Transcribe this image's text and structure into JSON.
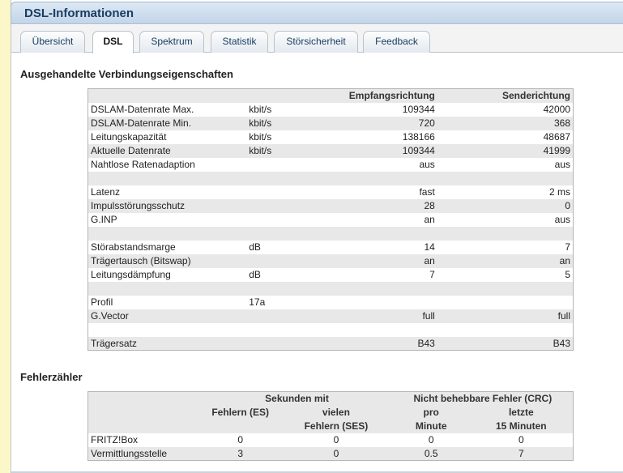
{
  "window": {
    "title": "DSL-Informationen"
  },
  "tabs": [
    {
      "label": "Übersicht",
      "active": false
    },
    {
      "label": "DSL",
      "active": true
    },
    {
      "label": "Spektrum",
      "active": false
    },
    {
      "label": "Statistik",
      "active": false
    },
    {
      "label": "Störsicherheit",
      "active": false
    },
    {
      "label": "Feedback",
      "active": false
    }
  ],
  "connection": {
    "heading": "Ausgehandelte Verbindungseigenschaften",
    "col_receive": "Empfangsrichtung",
    "col_send": "Senderichtung",
    "rows": [
      {
        "label": "DSLAM-Datenrate Max.",
        "unit": "kbit/s",
        "rx": "109344",
        "tx": "42000"
      },
      {
        "label": "DSLAM-Datenrate Min.",
        "unit": "kbit/s",
        "rx": "720",
        "tx": "368"
      },
      {
        "label": "Leitungskapazität",
        "unit": "kbit/s",
        "rx": "138166",
        "tx": "48687"
      },
      {
        "label": "Aktuelle Datenrate",
        "unit": "kbit/s",
        "rx": "109344",
        "tx": "41999"
      },
      {
        "label": "Nahtlose Ratenadaption",
        "unit": "",
        "rx": "aus",
        "tx": "aus"
      },
      {
        "label": "",
        "unit": "",
        "rx": "",
        "tx": ""
      },
      {
        "label": "Latenz",
        "unit": "",
        "rx": "fast",
        "tx": "2 ms"
      },
      {
        "label": "Impulsstörungsschutz",
        "unit": "",
        "rx": "28",
        "tx": "0"
      },
      {
        "label": "G.INP",
        "unit": "",
        "rx": "an",
        "tx": "aus"
      },
      {
        "label": "",
        "unit": "",
        "rx": "",
        "tx": ""
      },
      {
        "label": "Störabstandsmarge",
        "unit": "dB",
        "rx": "14",
        "tx": "7"
      },
      {
        "label": "Trägertausch (Bitswap)",
        "unit": "",
        "rx": "an",
        "tx": "an"
      },
      {
        "label": "Leitungsdämpfung",
        "unit": "dB",
        "rx": "7",
        "tx": "5"
      },
      {
        "label": "",
        "unit": "",
        "rx": "",
        "tx": ""
      },
      {
        "label": "Profil",
        "unit": "17a",
        "rx": "",
        "tx": ""
      },
      {
        "label": "G.Vector",
        "unit": "",
        "rx": "full",
        "tx": "full"
      },
      {
        "label": "",
        "unit": "",
        "rx": "",
        "tx": ""
      },
      {
        "label": "Trägersatz",
        "unit": "",
        "rx": "B43",
        "tx": "B43"
      }
    ]
  },
  "errors": {
    "heading": "Fehlerzähler",
    "group_seconds": "Sekunden mit",
    "group_crc": "Nicht behebbare Fehler (CRC)",
    "col_es": "Fehlern (ES)",
    "col_ses_1": "vielen",
    "col_ses_2": "Fehlern (SES)",
    "col_min_1": "pro",
    "col_min_2": "Minute",
    "col_15_1": "letzte",
    "col_15_2": "15 Minuten",
    "rows": [
      {
        "label": "FRITZ!Box",
        "es": "0",
        "ses": "0",
        "per_min": "0",
        "last15": "0"
      },
      {
        "label": "Vermittlungsstelle",
        "es": "3",
        "ses": "0",
        "per_min": "0.5",
        "last15": "7"
      }
    ]
  }
}
